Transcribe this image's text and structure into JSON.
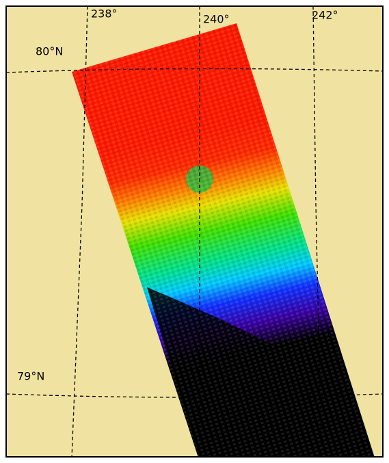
{
  "map": {
    "longitude_labels": [
      "238°",
      "240°",
      "242°"
    ],
    "latitude_labels": [
      "80°N",
      "79°N"
    ]
  }
}
